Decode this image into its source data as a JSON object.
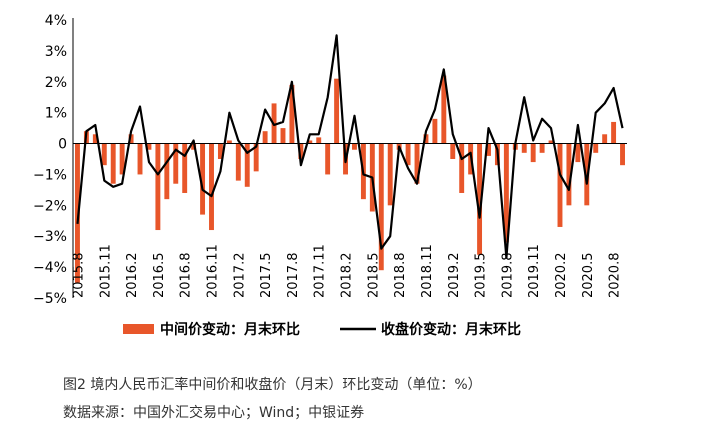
{
  "chart_data": {
    "type": "bar",
    "x": [
      "2015.8",
      "2015.9",
      "2015.10",
      "2015.11",
      "2015.12",
      "2016.1",
      "2016.2",
      "2016.3",
      "2016.4",
      "2016.5",
      "2016.6",
      "2016.7",
      "2016.8",
      "2016.9",
      "2016.10",
      "2016.11",
      "2016.12",
      "2017.1",
      "2017.2",
      "2017.3",
      "2017.4",
      "2017.5",
      "2017.6",
      "2017.7",
      "2017.8",
      "2017.9",
      "2017.10",
      "2017.11",
      "2017.12",
      "2018.1",
      "2018.2",
      "2018.3",
      "2018.4",
      "2018.5",
      "2018.6",
      "2018.7",
      "2018.8",
      "2018.9",
      "2018.10",
      "2018.11",
      "2018.12",
      "2019.1",
      "2019.2",
      "2019.3",
      "2019.4",
      "2019.5",
      "2019.6",
      "2019.7",
      "2019.8",
      "2019.9",
      "2019.10",
      "2019.11",
      "2019.12",
      "2020.1",
      "2020.2",
      "2020.3",
      "2020.4",
      "2020.5",
      "2020.6",
      "2020.7",
      "2020.8",
      "2020.9"
    ],
    "tick_labels": [
      "2015.8",
      "2015.11",
      "2016.2",
      "2016.5",
      "2016.8",
      "2016.11",
      "2017.2",
      "2017.5",
      "2017.8",
      "2017.11",
      "2018.2",
      "2018.5",
      "2018.8",
      "2018.11",
      "2019.2",
      "2019.5",
      "2019.8",
      "2019.11",
      "2020.2",
      "2020.5",
      "2020.8"
    ],
    "series": [
      {
        "name": "中间价变动：月末环比",
        "type": "bar",
        "color": "#E8562A",
        "values": [
          -4.5,
          0.4,
          0.3,
          -0.7,
          -1.3,
          -1.0,
          0.3,
          -1.0,
          -0.2,
          -2.8,
          -1.8,
          -1.3,
          -1.6,
          -0.2,
          -2.3,
          -2.8,
          -0.5,
          0.1,
          -1.2,
          -1.4,
          -0.9,
          0.4,
          1.3,
          0.5,
          1.9,
          -0.5,
          0.1,
          0.2,
          -1.0,
          2.1,
          -1.0,
          -0.2,
          -1.8,
          -2.2,
          -4.1,
          -2.0,
          -0.2,
          -0.7,
          -1.3,
          0.3,
          0.8,
          2.2,
          -0.5,
          -1.6,
          -1.0,
          -3.6,
          -0.4,
          -0.7,
          -3.2,
          -0.2,
          -0.3,
          -0.6,
          -0.3,
          0.1,
          -2.7,
          -2.0,
          -0.6,
          -2.0,
          -0.3,
          0.3,
          0.7,
          -0.7
        ]
      },
      {
        "name": "收盘价变动：月末环比",
        "type": "line",
        "color": "#000000",
        "values": [
          -2.6,
          0.4,
          0.6,
          -1.2,
          -1.4,
          -1.3,
          0.4,
          1.2,
          -0.6,
          -1.0,
          -0.6,
          -0.2,
          -0.4,
          0.1,
          -1.5,
          -1.7,
          -0.9,
          1.0,
          0.1,
          -0.3,
          -0.1,
          1.1,
          0.6,
          0.7,
          2.0,
          -0.7,
          0.3,
          0.3,
          1.5,
          3.5,
          -0.6,
          0.9,
          -1.0,
          -1.1,
          -3.4,
          -3.0,
          -0.1,
          -0.8,
          -1.3,
          0.4,
          1.1,
          2.4,
          0.3,
          -0.5,
          -0.3,
          -2.4,
          0.5,
          -0.2,
          -3.7,
          0.0,
          1.5,
          0.1,
          0.8,
          0.5,
          -1.0,
          -1.5,
          0.6,
          -1.3,
          1.0,
          1.3,
          1.8,
          0.5
        ]
      }
    ],
    "ylim": [
      -5,
      4
    ],
    "yticks": [
      "4%",
      "3%",
      "2%",
      "1%",
      "0",
      "−1%",
      "−2%",
      "−3%",
      "−4%",
      "−5%"
    ],
    "ytick_values": [
      4,
      3,
      2,
      1,
      0,
      -1,
      -2,
      -3,
      -4,
      -5
    ],
    "legend_position": "bottom",
    "grid": false
  },
  "caption": {
    "title": "图2  境内人民币汇率中间价和收盘价（月末）环比变动（单位：%）",
    "source": "数据来源：中国外汇交易中心；Wind；中银证券"
  }
}
